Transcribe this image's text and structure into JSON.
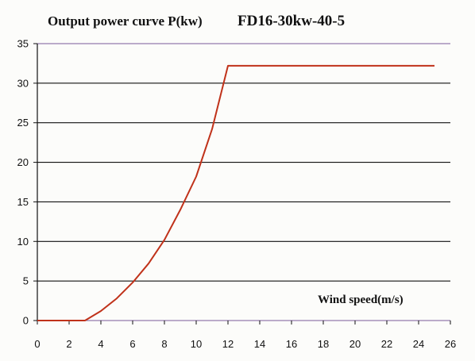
{
  "chart_data": {
    "type": "line",
    "title_part1": "Output power curve P(kw)",
    "title_part2": "FD16-30kw-40-5",
    "xlabel": "Wind speed(m/s)",
    "ylabel": "",
    "xlim": [
      0,
      26
    ],
    "ylim": [
      0,
      35
    ],
    "xticks": [
      0,
      2,
      4,
      6,
      8,
      10,
      12,
      14,
      16,
      18,
      20,
      22,
      24,
      26
    ],
    "yticks": [
      0,
      5,
      10,
      15,
      20,
      25,
      30,
      35
    ],
    "grid": "horizontal",
    "colors": {
      "line": "#c0321a",
      "grid": "#111111",
      "grid_accent": "#7a5a9a",
      "axis": "#111111"
    },
    "series": [
      {
        "x": [
          0,
          3,
          4,
          5,
          6,
          7,
          8,
          9,
          10,
          11,
          12,
          25
        ],
        "values": [
          0,
          0,
          1.2,
          2.8,
          4.8,
          7.2,
          10.2,
          14,
          18.2,
          24.2,
          32.2,
          32.2
        ]
      }
    ]
  }
}
